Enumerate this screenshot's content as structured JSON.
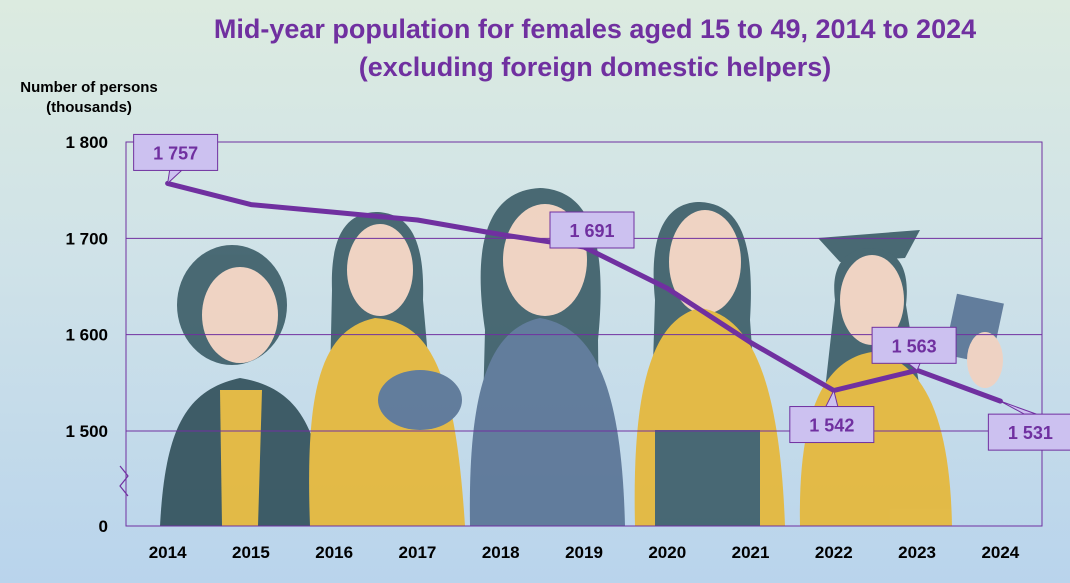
{
  "chart_data": {
    "type": "line",
    "title": "Mid-year population for females aged 15 to 49, 2014 to 2024 (excluding foreign domestic helpers)",
    "ylabel": "Number of persons (thousands)",
    "xlabel": "",
    "categories": [
      "2014",
      "2015",
      "2016",
      "2017",
      "2018",
      "2019",
      "2020",
      "2021",
      "2022",
      "2023",
      "2024"
    ],
    "series": [
      {
        "values": [
          1757,
          1735,
          1727,
          1719,
          1704,
          1691,
          1648,
          1592,
          1542,
          1563,
          1531
        ]
      }
    ],
    "labeled_points": [
      {
        "index": 0,
        "label": "1 757"
      },
      {
        "index": 5,
        "label": "1 691"
      },
      {
        "index": 8,
        "label": "1 542"
      },
      {
        "index": 9,
        "label": "1 563"
      },
      {
        "index": 10,
        "label": "1 531"
      }
    ],
    "yticks": [
      {
        "value": 1800,
        "label": "1 800"
      },
      {
        "value": 1700,
        "label": "1 700"
      },
      {
        "value": 1600,
        "label": "1 600"
      },
      {
        "value": 1500,
        "label": "1 500"
      }
    ],
    "ybase_label": "0",
    "ylim": [
      1400,
      1800
    ],
    "axis_break": true,
    "grid": "horizontal",
    "colors": {
      "line": "#7030a0",
      "grid": "#7030a0",
      "label_box": "#ccc1f0",
      "title": "#7030a0"
    }
  }
}
